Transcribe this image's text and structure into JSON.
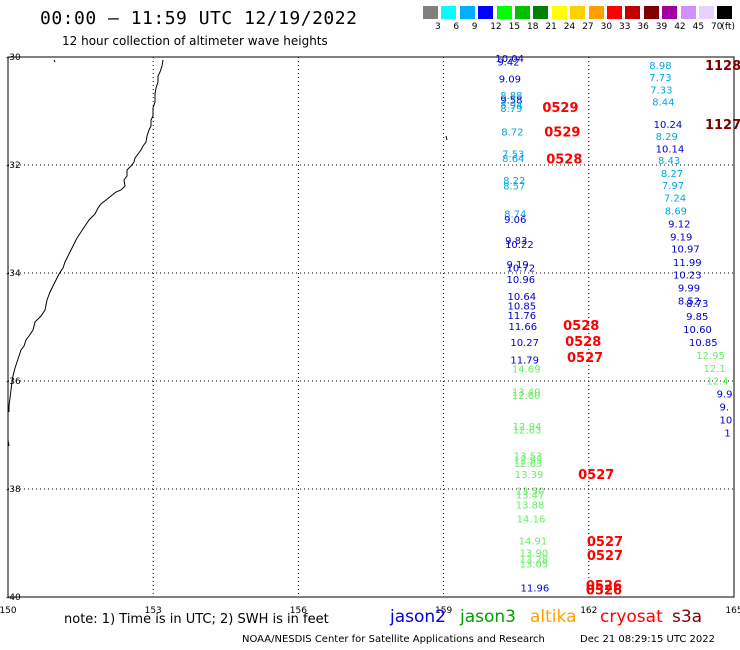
{
  "title": "00:00 – 11:59 UTC 12/19/2022",
  "subtitle": "12 hour collection of altimeter wave heights",
  "legend": {
    "unit": "(ft)",
    "levels": [
      "3",
      "6",
      "9",
      "12",
      "15",
      "18",
      "21",
      "24",
      "27",
      "30",
      "33",
      "36",
      "39",
      "42",
      "45",
      "70"
    ],
    "colors": [
      "#808080",
      "#00ffff",
      "#00b0ff",
      "#0000ff",
      "#00ff00",
      "#00c000",
      "#008000",
      "#ffff00",
      "#ffd000",
      "#ffa000",
      "#ff0000",
      "#c00000",
      "#800000",
      "#a000a0",
      "#d090ff",
      "#e8d0ff",
      "#000000"
    ]
  },
  "map": {
    "lon_ticks": [
      "150",
      "153",
      "156",
      "159",
      "162",
      "165"
    ],
    "lat_ticks": [
      "-30",
      "-32",
      "-34",
      "-36",
      "-38",
      "-40"
    ]
  },
  "footnote": "note: 1) Time is in UTC; 2) SWH is in feet",
  "satellites": [
    {
      "name": "jason2",
      "color": "#0000dd"
    },
    {
      "name": "jason3",
      "color": "#00a000"
    },
    {
      "name": "altika",
      "color": "#ffa000"
    },
    {
      "name": "cryosat",
      "color": "#ff0000"
    },
    {
      "name": "s3a",
      "color": "#800000"
    }
  ],
  "credit": "NOAA/NESDIS Center for Satellite Applications and Research",
  "timestamp": "Dec 21 08:29:15 UTC 2022",
  "track_left": {
    "values": [
      {
        "t": "10.04",
        "c": "#0000cc",
        "lon": 160.07,
        "lat": -30.02
      },
      {
        "t": "9.42",
        "c": "#0000cc",
        "lon": 160.11,
        "lat": -30.08
      },
      {
        "t": "9.09",
        "c": "#0000cc",
        "lon": 160.14,
        "lat": -30.4
      },
      {
        "t": "8.88",
        "c": "#00a8e0",
        "lon": 160.17,
        "lat": -30.7
      },
      {
        "t": "9.58",
        "c": "#0000cc",
        "lon": 160.17,
        "lat": -30.79
      },
      {
        "t": "8.94",
        "c": "#00a8e0",
        "lon": 160.17,
        "lat": -30.88
      },
      {
        "t": "8.79",
        "c": "#00a8e0",
        "lon": 160.17,
        "lat": -30.94
      },
      {
        "t": "8.72",
        "c": "#00a8e0",
        "lon": 160.19,
        "lat": -31.38
      },
      {
        "t": "7.53",
        "c": "#00a8e0",
        "lon": 160.21,
        "lat": -31.79
      },
      {
        "t": "8.64",
        "c": "#00a8e0",
        "lon": 160.21,
        "lat": -31.87
      },
      {
        "t": "8.22",
        "c": "#00a8e0",
        "lon": 160.23,
        "lat": -32.28
      },
      {
        "t": "8.57",
        "c": "#00a8e0",
        "lon": 160.23,
        "lat": -32.38
      },
      {
        "t": "8.74",
        "c": "#00a8e0",
        "lon": 160.25,
        "lat": -32.9
      },
      {
        "t": "9.06",
        "c": "#0000cc",
        "lon": 160.25,
        "lat": -33.0
      },
      {
        "t": "9.83",
        "c": "#0000cc",
        "lon": 160.27,
        "lat": -33.39
      },
      {
        "t": "10.22",
        "c": "#0000cc",
        "lon": 160.27,
        "lat": -33.46
      },
      {
        "t": "9.19",
        "c": "#0000cc",
        "lon": 160.3,
        "lat": -33.83
      },
      {
        "t": "10.72",
        "c": "#0000cc",
        "lon": 160.3,
        "lat": -33.9
      },
      {
        "t": "10.96",
        "c": "#0000cc",
        "lon": 160.3,
        "lat": -34.11
      },
      {
        "t": "10.64",
        "c": "#0000cc",
        "lon": 160.32,
        "lat": -34.43
      },
      {
        "t": "10.85",
        "c": "#0000cc",
        "lon": 160.32,
        "lat": -34.6
      },
      {
        "t": "11.76",
        "c": "#0000cc",
        "lon": 160.32,
        "lat": -34.78
      },
      {
        "t": "11.66",
        "c": "#0000cc",
        "lon": 160.34,
        "lat": -34.98
      },
      {
        "t": "10.27",
        "c": "#0000cc",
        "lon": 160.38,
        "lat": -35.28
      },
      {
        "t": "11.79",
        "c": "#0000cc",
        "lon": 160.38,
        "lat": -35.6
      },
      {
        "t": "14.69",
        "c": "#66ee66",
        "lon": 160.41,
        "lat": -35.77
      },
      {
        "t": "13.40",
        "c": "#66ee66",
        "lon": 160.41,
        "lat": -36.19
      },
      {
        "t": "12.60",
        "c": "#66ee66",
        "lon": 160.41,
        "lat": -36.26
      },
      {
        "t": "12.94",
        "c": "#66ee66",
        "lon": 160.43,
        "lat": -36.83
      },
      {
        "t": "12.63",
        "c": "#66ee66",
        "lon": 160.43,
        "lat": -36.9
      },
      {
        "t": "13.53",
        "c": "#66ee66",
        "lon": 160.45,
        "lat": -37.38
      },
      {
        "t": "12.95",
        "c": "#66ee66",
        "lon": 160.45,
        "lat": -37.45
      },
      {
        "t": "12.63",
        "c": "#66ee66",
        "lon": 160.45,
        "lat": -37.52
      },
      {
        "t": "13.39",
        "c": "#66ee66",
        "lon": 160.47,
        "lat": -37.72
      },
      {
        "t": "13.50",
        "c": "#66ee66",
        "lon": 160.49,
        "lat": -38.03
      },
      {
        "t": "13.47",
        "c": "#66ee66",
        "lon": 160.49,
        "lat": -38.1
      },
      {
        "t": "13.88",
        "c": "#66ee66",
        "lon": 160.49,
        "lat": -38.29
      },
      {
        "t": "14.16",
        "c": "#66ee66",
        "lon": 160.51,
        "lat": -38.55
      },
      {
        "t": "14.91",
        "c": "#66ee66",
        "lon": 160.55,
        "lat": -38.95
      },
      {
        "t": "13.90",
        "c": "#66ee66",
        "lon": 160.57,
        "lat": -39.18
      },
      {
        "t": "13.28",
        "c": "#66ee66",
        "lon": 160.57,
        "lat": -39.3
      },
      {
        "t": "13.05",
        "c": "#66ee66",
        "lon": 160.57,
        "lat": -39.38
      },
      {
        "t": "11.96",
        "c": "#0000cc",
        "lon": 160.59,
        "lat": -39.82
      }
    ],
    "times": [
      {
        "t": "0529",
        "lon": 161.04,
        "lat": -30.93
      },
      {
        "t": "0529",
        "lon": 161.08,
        "lat": -31.38
      },
      {
        "t": "0528",
        "lon": 161.12,
        "lat": -31.88
      },
      {
        "t": "0528",
        "lon": 161.47,
        "lat": -34.96
      },
      {
        "t": "0528",
        "lon": 161.51,
        "lat": -35.26
      },
      {
        "t": "0527",
        "lon": 161.55,
        "lat": -35.56
      },
      {
        "t": "0527",
        "lon": 161.78,
        "lat": -37.72
      },
      {
        "t": "0527",
        "lon": 161.96,
        "lat": -38.96
      },
      {
        "t": "0527",
        "lon": 161.96,
        "lat": -39.22
      },
      {
        "t": "0526",
        "lon": 161.94,
        "lat": -39.78
      },
      {
        "t": "0526",
        "lon": 161.94,
        "lat": -39.86
      }
    ]
  },
  "track_right": {
    "values": [
      {
        "t": "8.98",
        "c": "#00a8e0",
        "lon": 163.25,
        "lat": -30.15
      },
      {
        "t": "7.73",
        "c": "#00a8e0",
        "lon": 163.25,
        "lat": -30.37
      },
      {
        "t": "7.33",
        "c": "#00a8e0",
        "lon": 163.27,
        "lat": -30.6
      },
      {
        "t": "8.44",
        "c": "#00a8e0",
        "lon": 163.31,
        "lat": -30.82
      },
      {
        "t": "10.24",
        "c": "#0000cc",
        "lon": 163.34,
        "lat": -31.24
      },
      {
        "t": "8.29",
        "c": "#00a8e0",
        "lon": 163.38,
        "lat": -31.46
      },
      {
        "t": "10.14",
        "c": "#0000cc",
        "lon": 163.38,
        "lat": -31.69
      },
      {
        "t": "8.43",
        "c": "#00a8e0",
        "lon": 163.43,
        "lat": -31.91
      },
      {
        "t": "8.27",
        "c": "#00a8e0",
        "lon": 163.49,
        "lat": -32.15
      },
      {
        "t": "7.97",
        "c": "#00a8e0",
        "lon": 163.51,
        "lat": -32.37
      },
      {
        "t": "7.24",
        "c": "#00a8e0",
        "lon": 163.55,
        "lat": -32.6
      },
      {
        "t": "8.69",
        "c": "#00a8e0",
        "lon": 163.57,
        "lat": -32.84
      },
      {
        "t": "9.12",
        "c": "#0000cc",
        "lon": 163.64,
        "lat": -33.08
      },
      {
        "t": "9.19",
        "c": "#0000cc",
        "lon": 163.68,
        "lat": -33.32
      },
      {
        "t": "10.97",
        "c": "#0000cc",
        "lon": 163.7,
        "lat": -33.55
      },
      {
        "t": "11.99",
        "c": "#0000cc",
        "lon": 163.74,
        "lat": -33.8
      },
      {
        "t": "10.23",
        "c": "#0000cc",
        "lon": 163.74,
        "lat": -34.03
      },
      {
        "t": "9.99",
        "c": "#0000cc",
        "lon": 163.84,
        "lat": -34.27
      },
      {
        "t": "8.52",
        "c": "#0000cc",
        "lon": 163.84,
        "lat": -34.51
      },
      {
        "t": "8.73",
        "c": "#0000cc",
        "lon": 164.01,
        "lat": -34.56
      },
      {
        "t": "9.85",
        "c": "#0000cc",
        "lon": 164.01,
        "lat": -34.8
      },
      {
        "t": "10.60",
        "c": "#0000cc",
        "lon": 163.95,
        "lat": -35.04
      },
      {
        "t": "10.85",
        "c": "#0000cc",
        "lon": 164.07,
        "lat": -35.28
      },
      {
        "t": "12.95",
        "c": "#66ee66",
        "lon": 164.22,
        "lat": -35.52
      },
      {
        "t": "12.1",
        "c": "#66ee66",
        "lon": 164.37,
        "lat": -35.76
      },
      {
        "t": "12.4",
        "c": "#66ee66",
        "lon": 164.43,
        "lat": -35.99
      },
      {
        "t": "9.9",
        "c": "#0000cc",
        "lon": 164.64,
        "lat": -36.23
      },
      {
        "t": "9.",
        "c": "#0000cc",
        "lon": 164.7,
        "lat": -36.47
      },
      {
        "t": "10",
        "c": "#0000cc",
        "lon": 164.7,
        "lat": -36.71
      },
      {
        "t": "1",
        "c": "#0000cc",
        "lon": 164.8,
        "lat": -36.95
      }
    ],
    "times": [
      {
        "t": "1128",
        "lon": 164.4,
        "lat": -30.15
      },
      {
        "t": "1127",
        "lon": 164.4,
        "lat": -31.24
      }
    ]
  }
}
